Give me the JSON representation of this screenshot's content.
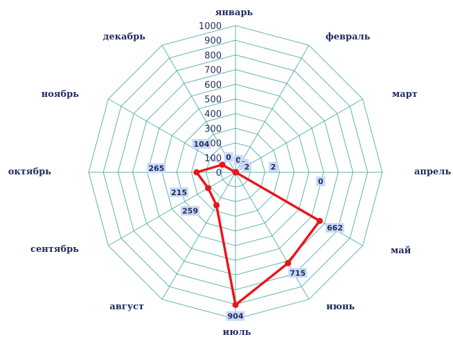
{
  "chart_data": {
    "type": "radar",
    "categories": [
      "январь",
      "февраль",
      "март",
      "апрель",
      "май",
      "июнь",
      "июль",
      "август",
      "сентябрь",
      "октябрь",
      "ноябрь",
      "декабрь"
    ],
    "series": [
      {
        "values": [
          0,
          1,
          2,
          2,
          662,
          715,
          904,
          259,
          215,
          265,
          104,
          0
        ]
      }
    ],
    "ticks": [
      0,
      100,
      200,
      300,
      400,
      500,
      600,
      700,
      800,
      900,
      1000
    ],
    "rlim": [
      0,
      1000
    ],
    "grid": true,
    "extra_labels": [
      {
        "text": "0"
      }
    ],
    "colors": {
      "series": "#e8161b",
      "grid": "#5fb2ad",
      "label_bg": "#c9d9f7",
      "text": "#1f2a5c"
    }
  }
}
